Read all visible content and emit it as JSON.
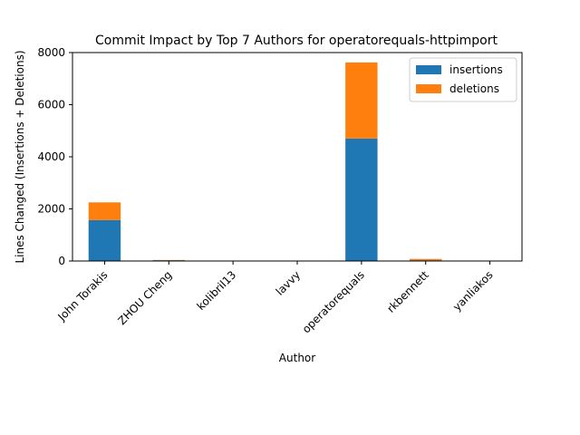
{
  "chart_data": {
    "type": "bar",
    "stacked": true,
    "title": "Commit Impact by Top 7 Authors for operatorequals-httpimport",
    "xlabel": "Author",
    "ylabel": "Lines Changed (Insertions + Deletions)",
    "categories": [
      "John Torakis",
      "ZHOU Cheng",
      "kolibril13",
      "lavvy",
      "operatorequals",
      "rkbennett",
      "yanliakos"
    ],
    "series": [
      {
        "name": "insertions",
        "color": "#1f77b4",
        "values": [
          1570,
          30,
          2,
          2,
          4700,
          30,
          3
        ]
      },
      {
        "name": "deletions",
        "color": "#ff7f0e",
        "values": [
          680,
          10,
          1,
          1,
          2920,
          50,
          2
        ]
      }
    ],
    "ylim": [
      0,
      8000
    ],
    "yticks": [
      "0",
      "2000",
      "4000",
      "6000",
      "8000"
    ],
    "legend_position": "top-right",
    "grid": false
  }
}
